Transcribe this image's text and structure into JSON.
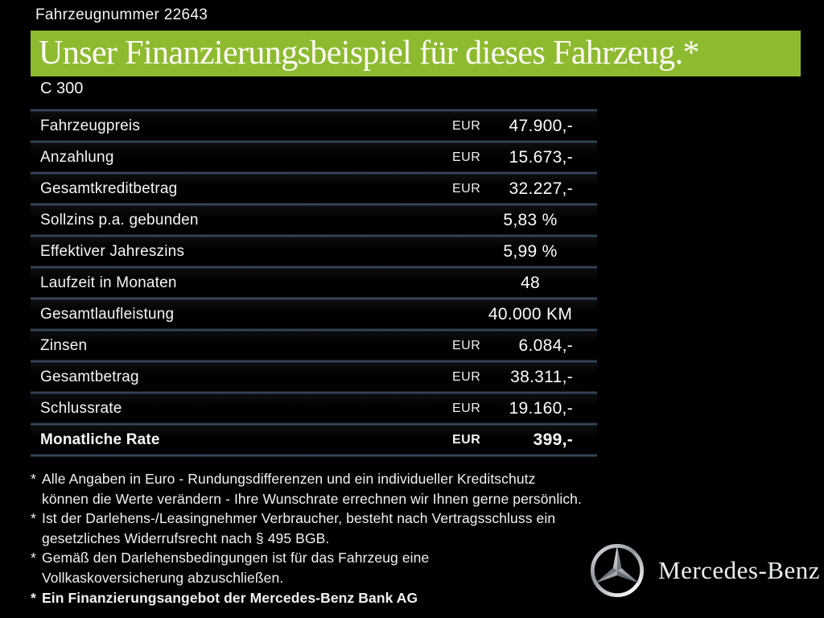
{
  "header": {
    "vehicle_number": "Fahrzeugnummer 22643",
    "title": "Unser Finanzierungsbeispiel für dieses Fahrzeug.*",
    "model": "C 300"
  },
  "table": {
    "rows": [
      {
        "label": "Fahrzeugpreis",
        "currency": "EUR",
        "value": "47.900,-",
        "bold": false,
        "align": "right"
      },
      {
        "label": "Anzahlung",
        "currency": "EUR",
        "value": "15.673,-",
        "bold": false,
        "align": "right"
      },
      {
        "label": "Gesamtkreditbetrag",
        "currency": "EUR",
        "value": "32.227,-",
        "bold": false,
        "align": "right"
      },
      {
        "label": "Sollzins p.a. gebunden",
        "currency": "",
        "value": "5,83 %",
        "bold": false,
        "align": "center"
      },
      {
        "label": "Effektiver Jahreszins",
        "currency": "",
        "value": "5,99 %",
        "bold": false,
        "align": "center"
      },
      {
        "label": "Laufzeit in Monaten",
        "currency": "",
        "value": "48",
        "bold": false,
        "align": "center"
      },
      {
        "label": "Gesamtlaufleistung",
        "currency": "",
        "value": "40.000 KM",
        "bold": false,
        "align": "center"
      },
      {
        "label": "Zinsen",
        "currency": "EUR",
        "value": "6.084,-",
        "bold": false,
        "align": "right"
      },
      {
        "label": "Gesamtbetrag",
        "currency": "EUR",
        "value": "38.311,-",
        "bold": false,
        "align": "right"
      },
      {
        "label": "Schlussrate",
        "currency": "EUR",
        "value": "19.160,-",
        "bold": false,
        "align": "right"
      },
      {
        "label": "Monatliche Rate",
        "currency": "EUR",
        "value": "399,-",
        "bold": true,
        "align": "right"
      }
    ]
  },
  "footnotes": [
    {
      "marker": "*",
      "bold": false,
      "lines": [
        "Alle Angaben in Euro - Rundungsdifferenzen und ein individueller Kreditschutz",
        "können die Werte verändern - Ihre Wunschrate errechnen wir Ihnen gerne persönlich."
      ]
    },
    {
      "marker": "*",
      "bold": false,
      "lines": [
        "Ist der Darlehens-/Leasingnehmer Verbraucher, besteht nach Vertragsschluss ein",
        "gesetzliches  Widerrufsrecht nach § 495 BGB."
      ]
    },
    {
      "marker": "*",
      "bold": false,
      "lines": [
        "Gemäß den Darlehensbedingungen ist für das Fahrzeug eine",
        "Vollkaskoversicherung abzuschließen."
      ]
    },
    {
      "marker": "*",
      "bold": true,
      "lines": [
        "Ein Finanzierungsangebot der Mercedes-Benz Bank AG"
      ]
    }
  ],
  "brand": {
    "wordmark": "Mercedes-Benz",
    "logo_icon": "mercedes-star-icon"
  },
  "colors": {
    "background": "#000000",
    "accent_green": "#8EBA30",
    "separator_blue": "#42566E",
    "text": "#FFFFFF"
  }
}
